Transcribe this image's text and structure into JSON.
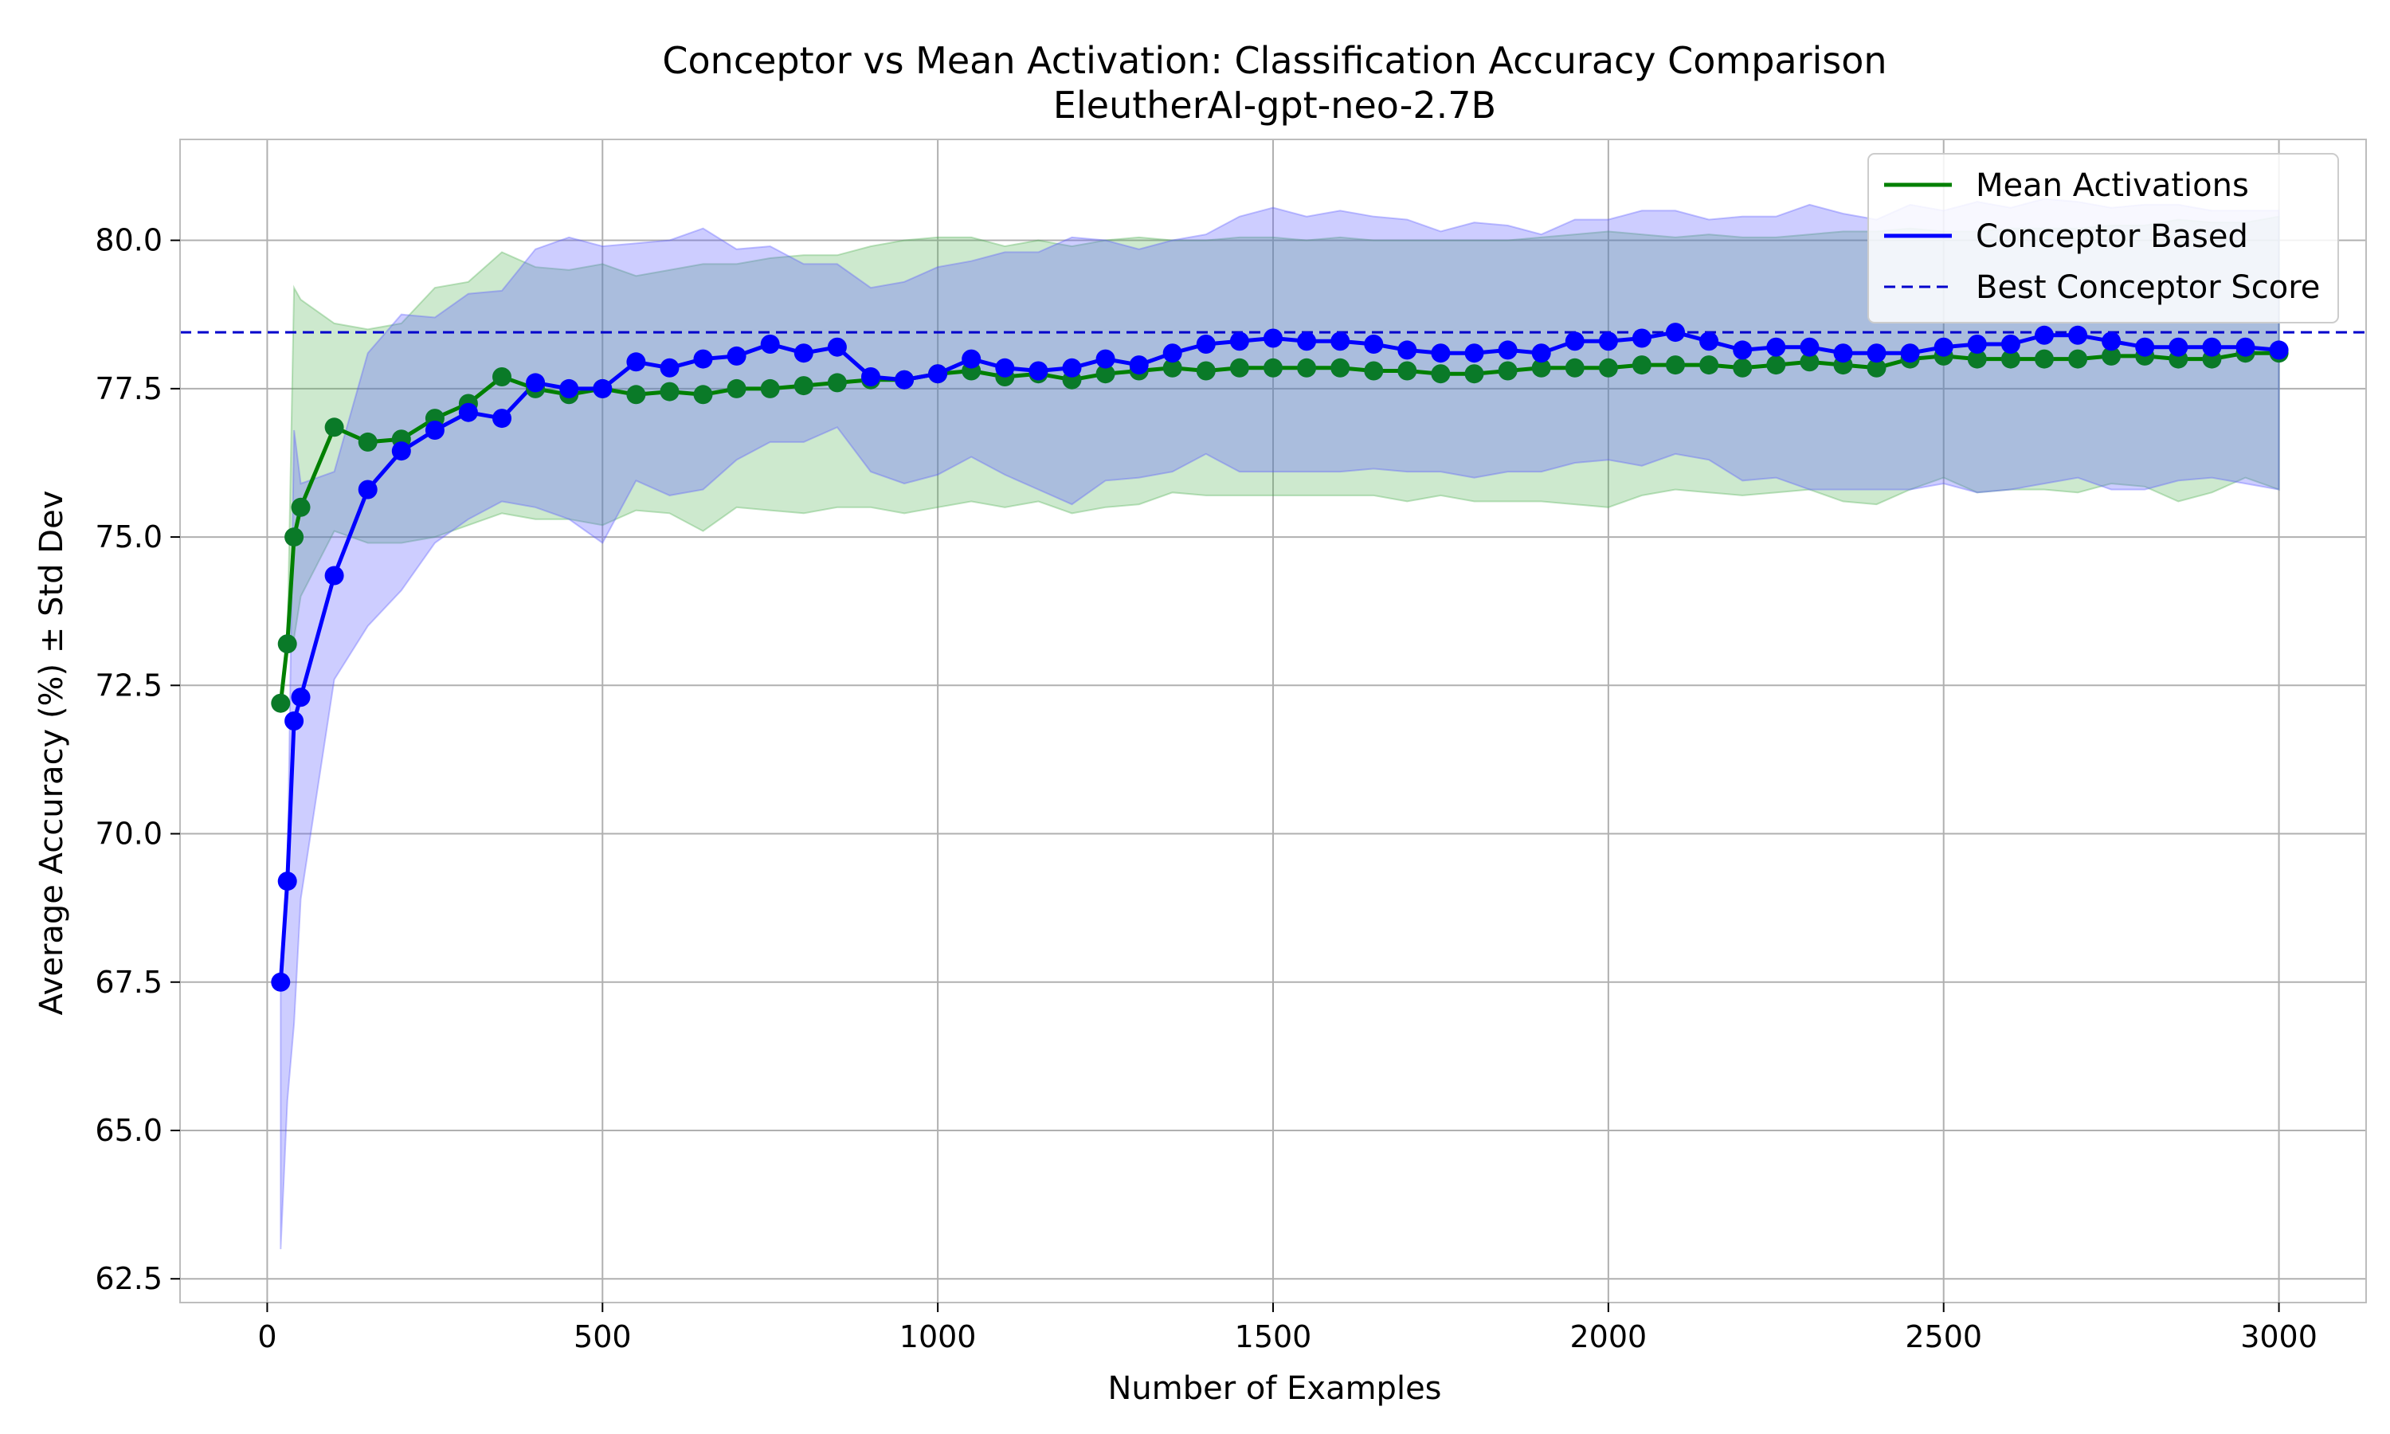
{
  "chart_data": {
    "type": "line",
    "title": "Conceptor vs Mean Activation: Classification Accuracy Comparison",
    "subtitle": "EleutherAI-gpt-neo-2.7B",
    "xlabel": "Number of Examples",
    "ylabel": "Average Accuracy (%) ± Std Dev",
    "xlim": [
      -130,
      3130
    ],
    "ylim": [
      62.1,
      81.7
    ],
    "xticks": [
      0,
      500,
      1000,
      1500,
      2000,
      2500,
      3000
    ],
    "yticks": [
      62.5,
      65.0,
      67.5,
      70.0,
      72.5,
      75.0,
      77.5,
      80.0
    ],
    "xtick_labels": [
      "0",
      "500",
      "1000",
      "1500",
      "2000",
      "2500",
      "3000"
    ],
    "ytick_labels": [
      "62.5",
      "65.0",
      "67.5",
      "70.0",
      "72.5",
      "75.0",
      "77.5",
      "80.0"
    ],
    "grid": true,
    "legend_position": "top-right",
    "x": [
      20,
      30,
      40,
      50,
      100,
      150,
      200,
      250,
      300,
      350,
      400,
      450,
      500,
      550,
      600,
      650,
      700,
      750,
      800,
      850,
      900,
      950,
      1000,
      1050,
      1100,
      1150,
      1200,
      1250,
      1300,
      1350,
      1400,
      1450,
      1500,
      1550,
      1600,
      1650,
      1700,
      1750,
      1800,
      1850,
      1900,
      1950,
      2000,
      2050,
      2100,
      2150,
      2200,
      2250,
      2300,
      2350,
      2400,
      2450,
      2500,
      2550,
      2600,
      2650,
      2700,
      2750,
      2800,
      2850,
      2900,
      2950,
      3000
    ],
    "series": [
      {
        "name": "Mean Activations",
        "color": "#008000",
        "values": [
          72.2,
          73.2,
          75.0,
          75.5,
          76.85,
          76.6,
          76.65,
          77.0,
          77.25,
          77.7,
          77.5,
          77.4,
          77.5,
          77.4,
          77.45,
          77.4,
          77.5,
          77.5,
          77.55,
          77.6,
          77.65,
          77.65,
          77.75,
          77.8,
          77.7,
          77.75,
          77.65,
          77.75,
          77.8,
          77.85,
          77.8,
          77.85,
          77.85,
          77.85,
          77.85,
          77.8,
          77.8,
          77.75,
          77.75,
          77.8,
          77.85,
          77.85,
          77.85,
          77.9,
          77.9,
          77.9,
          77.85,
          77.9,
          77.95,
          77.9,
          77.85,
          78.0,
          78.05,
          78.0,
          78.0,
          78.0,
          78.0,
          78.05,
          78.05,
          78.0,
          78.0,
          78.1,
          78.1
        ],
        "lower": [
          72.2,
          73.2,
          73.3,
          74.0,
          75.1,
          74.9,
          74.9,
          75.0,
          75.2,
          75.4,
          75.3,
          75.3,
          75.2,
          75.45,
          75.4,
          75.1,
          75.5,
          75.45,
          75.4,
          75.5,
          75.5,
          75.4,
          75.5,
          75.6,
          75.5,
          75.6,
          75.4,
          75.5,
          75.55,
          75.75,
          75.7,
          75.7,
          75.7,
          75.7,
          75.7,
          75.7,
          75.6,
          75.7,
          75.6,
          75.6,
          75.6,
          75.55,
          75.5,
          75.7,
          75.8,
          75.75,
          75.7,
          75.75,
          75.8,
          75.6,
          75.55,
          75.8,
          76.0,
          75.75,
          75.8,
          75.8,
          75.75,
          75.9,
          75.85,
          75.6,
          75.75,
          76.0,
          75.8
        ],
        "upper": [
          72.2,
          73.2,
          79.2,
          79.0,
          78.6,
          78.5,
          78.6,
          79.2,
          79.3,
          79.8,
          79.55,
          79.5,
          79.6,
          79.4,
          79.5,
          79.6,
          79.6,
          79.7,
          79.75,
          79.75,
          79.9,
          80.0,
          80.05,
          80.05,
          79.9,
          80.0,
          79.9,
          80.0,
          80.05,
          80.0,
          80.0,
          80.05,
          80.05,
          80.0,
          80.05,
          80.0,
          80.0,
          80.0,
          80.0,
          80.0,
          80.05,
          80.1,
          80.15,
          80.1,
          80.05,
          80.1,
          80.05,
          80.05,
          80.1,
          80.15,
          80.15,
          80.2,
          80.15,
          80.15,
          80.2,
          80.2,
          80.2,
          80.25,
          80.25,
          80.35,
          80.3,
          80.3,
          80.4
        ]
      },
      {
        "name": "Conceptor Based",
        "color": "#0000ff",
        "values": [
          67.5,
          69.2,
          71.9,
          72.3,
          74.35,
          75.8,
          76.45,
          76.8,
          77.1,
          77.0,
          77.6,
          77.5,
          77.5,
          77.95,
          77.85,
          78.0,
          78.05,
          78.25,
          78.1,
          78.2,
          77.7,
          77.65,
          77.75,
          78.0,
          77.85,
          77.8,
          77.85,
          78.0,
          77.9,
          78.1,
          78.25,
          78.3,
          78.35,
          78.3,
          78.3,
          78.25,
          78.15,
          78.1,
          78.1,
          78.15,
          78.1,
          78.3,
          78.3,
          78.35,
          78.45,
          78.3,
          78.15,
          78.2,
          78.2,
          78.1,
          78.1,
          78.1,
          78.2,
          78.25,
          78.25,
          78.4,
          78.4,
          78.3,
          78.2,
          78.2,
          78.2,
          78.2,
          78.15
        ],
        "lower": [
          63.0,
          65.5,
          66.8,
          68.9,
          72.6,
          73.5,
          74.1,
          74.9,
          75.3,
          75.6,
          75.5,
          75.3,
          74.9,
          75.95,
          75.7,
          75.8,
          76.3,
          76.6,
          76.6,
          76.85,
          76.1,
          75.9,
          76.05,
          76.35,
          76.05,
          75.8,
          75.55,
          75.95,
          76.0,
          76.1,
          76.4,
          76.1,
          76.1,
          76.1,
          76.1,
          76.15,
          76.1,
          76.1,
          76.0,
          76.1,
          76.1,
          76.25,
          76.3,
          76.2,
          76.4,
          76.3,
          75.95,
          76.0,
          75.8,
          75.8,
          75.8,
          75.8,
          75.9,
          75.75,
          75.8,
          75.9,
          76.0,
          75.8,
          75.8,
          75.95,
          76.0,
          75.9,
          75.8
        ],
        "upper": [
          67.5,
          69.2,
          76.8,
          75.9,
          76.1,
          78.1,
          78.75,
          78.7,
          79.1,
          79.15,
          79.85,
          80.05,
          79.9,
          79.95,
          80.0,
          80.2,
          79.85,
          79.9,
          79.6,
          79.6,
          79.2,
          79.3,
          79.55,
          79.65,
          79.8,
          79.8,
          80.05,
          80.0,
          79.85,
          80.0,
          80.1,
          80.4,
          80.55,
          80.4,
          80.5,
          80.4,
          80.35,
          80.15,
          80.3,
          80.25,
          80.1,
          80.35,
          80.35,
          80.5,
          80.5,
          80.35,
          80.4,
          80.4,
          80.6,
          80.45,
          80.35,
          80.6,
          80.5,
          80.65,
          80.55,
          80.7,
          80.65,
          80.55,
          80.6,
          80.6,
          80.5,
          80.5,
          80.5
        ]
      }
    ],
    "reference_line": {
      "name": "Best Conceptor Score",
      "value": 78.45,
      "color": "#0000cc",
      "style": "dashed"
    }
  }
}
